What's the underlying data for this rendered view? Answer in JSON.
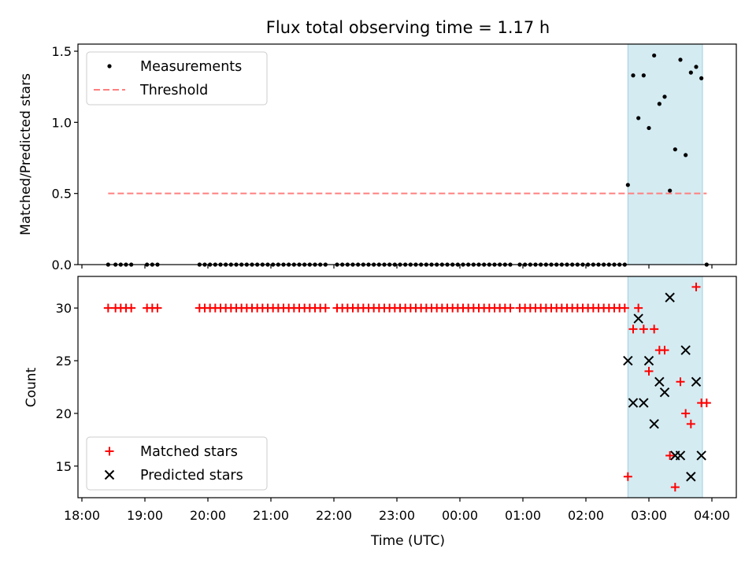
{
  "chart_data": {
    "title": "Flux total observing time = 1.17 h",
    "xlabel": "Time (UTC)",
    "x_ticks": [
      "18:00",
      "19:00",
      "20:00",
      "21:00",
      "22:00",
      "23:00",
      "00:00",
      "01:00",
      "02:00",
      "03:00",
      "04:00"
    ],
    "shaded_region": {
      "start": "02:40",
      "end": "03:51",
      "color": "#add8e6"
    },
    "top": {
      "type": "scatter",
      "ylabel": "Matched/Predicted stars",
      "ylim": [
        0,
        1.55
      ],
      "y_ticks": [
        "0.0",
        "0.5",
        "1.0",
        "1.5"
      ],
      "legend_position": "upper-left",
      "series": [
        {
          "name": "Measurements",
          "color": "#000000",
          "marker": "dot",
          "x": [
            "18:25",
            "18:32",
            "18:37",
            "18:42",
            "18:47",
            "19:02",
            "19:07",
            "19:12",
            "19:52",
            "19:57",
            "20:02",
            "20:07",
            "20:12",
            "20:17",
            "20:22",
            "20:27",
            "20:32",
            "20:37",
            "20:42",
            "20:47",
            "20:52",
            "20:57",
            "21:02",
            "21:07",
            "21:12",
            "21:17",
            "21:22",
            "21:27",
            "21:32",
            "21:37",
            "21:42",
            "21:47",
            "21:52",
            "22:03",
            "22:08",
            "22:13",
            "22:18",
            "22:23",
            "22:28",
            "22:33",
            "22:38",
            "22:43",
            "22:48",
            "22:53",
            "22:58",
            "23:03",
            "23:08",
            "23:13",
            "23:18",
            "23:23",
            "23:28",
            "23:33",
            "23:38",
            "23:43",
            "23:48",
            "23:53",
            "23:58",
            "00:03",
            "00:08",
            "00:13",
            "00:18",
            "00:23",
            "00:28",
            "00:33",
            "00:38",
            "00:43",
            "00:48",
            "00:57",
            "01:02",
            "01:07",
            "01:12",
            "01:17",
            "01:22",
            "01:27",
            "01:32",
            "01:37",
            "01:42",
            "01:47",
            "01:52",
            "01:57",
            "02:02",
            "02:07",
            "02:12",
            "02:17",
            "02:22",
            "02:27",
            "02:32",
            "02:37",
            "02:40",
            "02:45",
            "02:50",
            "02:55",
            "03:00",
            "03:05",
            "03:10",
            "03:15",
            "03:20",
            "03:25",
            "03:30",
            "03:35",
            "03:40",
            "03:45",
            "03:50",
            "03:55"
          ],
          "y": [
            0,
            0,
            0,
            0,
            0,
            0,
            0,
            0,
            0,
            0,
            0,
            0,
            0,
            0,
            0,
            0,
            0,
            0,
            0,
            0,
            0,
            0,
            0,
            0,
            0,
            0,
            0,
            0,
            0,
            0,
            0,
            0,
            0,
            0,
            0,
            0,
            0,
            0,
            0,
            0,
            0,
            0,
            0,
            0,
            0,
            0,
            0,
            0,
            0,
            0,
            0,
            0,
            0,
            0,
            0,
            0,
            0,
            0,
            0,
            0,
            0,
            0,
            0,
            0,
            0,
            0,
            0,
            0,
            0,
            0,
            0,
            0,
            0,
            0,
            0,
            0,
            0,
            0,
            0,
            0,
            0,
            0,
            0,
            0,
            0,
            0,
            0,
            0,
            0.56,
            1.33,
            1.03,
            1.33,
            0.96,
            1.47,
            1.13,
            1.18,
            0.52,
            0.81,
            1.44,
            0.77,
            1.35,
            1.39,
            1.31,
            0
          ]
        },
        {
          "name": "Threshold",
          "color": "#ff7f7f",
          "style": "dashed",
          "x": [
            "18:25",
            "03:55"
          ],
          "y": [
            0.5,
            0.5
          ]
        }
      ]
    },
    "bottom": {
      "type": "scatter",
      "ylabel": "Count",
      "ylim": [
        12,
        33
      ],
      "y_ticks": [
        "15",
        "20",
        "25",
        "30"
      ],
      "legend_position": "lower-left",
      "series": [
        {
          "name": "Matched stars",
          "color": "#ff0000",
          "marker": "plus",
          "x": [
            "18:25",
            "18:32",
            "18:37",
            "18:42",
            "18:47",
            "19:02",
            "19:07",
            "19:12",
            "19:52",
            "19:57",
            "20:02",
            "20:07",
            "20:12",
            "20:17",
            "20:22",
            "20:27",
            "20:32",
            "20:37",
            "20:42",
            "20:47",
            "20:52",
            "20:57",
            "21:02",
            "21:07",
            "21:12",
            "21:17",
            "21:22",
            "21:27",
            "21:32",
            "21:37",
            "21:42",
            "21:47",
            "21:52",
            "22:03",
            "22:08",
            "22:13",
            "22:18",
            "22:23",
            "22:28",
            "22:33",
            "22:38",
            "22:43",
            "22:48",
            "22:53",
            "22:58",
            "23:03",
            "23:08",
            "23:13",
            "23:18",
            "23:23",
            "23:28",
            "23:33",
            "23:38",
            "23:43",
            "23:48",
            "23:53",
            "23:58",
            "00:03",
            "00:08",
            "00:13",
            "00:18",
            "00:23",
            "00:28",
            "00:33",
            "00:38",
            "00:43",
            "00:48",
            "00:57",
            "01:02",
            "01:07",
            "01:12",
            "01:17",
            "01:22",
            "01:27",
            "01:32",
            "01:37",
            "01:42",
            "01:47",
            "01:52",
            "01:57",
            "02:02",
            "02:07",
            "02:12",
            "02:17",
            "02:22",
            "02:27",
            "02:32",
            "02:37",
            "02:40",
            "02:45",
            "02:50",
            "02:55",
            "03:00",
            "03:05",
            "03:10",
            "03:15",
            "03:20",
            "03:25",
            "03:30",
            "03:35",
            "03:40",
            "03:45",
            "03:50",
            "03:55"
          ],
          "y": [
            30,
            30,
            30,
            30,
            30,
            30,
            30,
            30,
            30,
            30,
            30,
            30,
            30,
            30,
            30,
            30,
            30,
            30,
            30,
            30,
            30,
            30,
            30,
            30,
            30,
            30,
            30,
            30,
            30,
            30,
            30,
            30,
            30,
            30,
            30,
            30,
            30,
            30,
            30,
            30,
            30,
            30,
            30,
            30,
            30,
            30,
            30,
            30,
            30,
            30,
            30,
            30,
            30,
            30,
            30,
            30,
            30,
            30,
            30,
            30,
            30,
            30,
            30,
            30,
            30,
            30,
            30,
            30,
            30,
            30,
            30,
            30,
            30,
            30,
            30,
            30,
            30,
            30,
            30,
            30,
            30,
            30,
            30,
            30,
            30,
            30,
            30,
            30,
            14,
            28,
            30,
            28,
            24,
            28,
            26,
            26,
            16,
            13,
            23,
            20,
            19,
            32,
            21,
            21
          ]
        },
        {
          "name": "Predicted stars",
          "color": "#000000",
          "marker": "x",
          "x": [
            "02:40",
            "02:45",
            "02:50",
            "02:55",
            "03:00",
            "03:05",
            "03:10",
            "03:15",
            "03:20",
            "03:25",
            "03:30",
            "03:35",
            "03:40",
            "03:45",
            "03:50"
          ],
          "y": [
            25,
            21,
            29,
            21,
            25,
            19,
            23,
            22,
            31,
            16,
            16,
            26,
            14,
            23,
            16
          ]
        }
      ]
    }
  }
}
